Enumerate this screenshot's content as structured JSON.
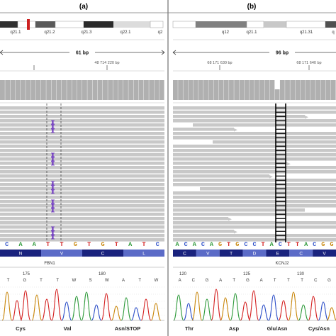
{
  "colors": {
    "A": "#2e9a3a",
    "C": "#2d4fc8",
    "G": "#c8860a",
    "T": "#d42020",
    "read": "#c8c8c8",
    "coverage": "#b0b0b0",
    "insertion": "#6a2fc0",
    "aa_dark": "#1a237e",
    "aa_light": "#5b6bc7",
    "ideogram_centromere": "#cc2020"
  },
  "panels": [
    {
      "label": "(a)",
      "ideogram_bands": [
        "q21.1",
        "q21.2",
        "q21.3",
        "q22.1",
        "q2"
      ],
      "span_label": "61 bp",
      "position_label": "48 714 220 bp",
      "sequence": [
        "C",
        "A",
        "A",
        "T",
        "T",
        "G",
        "T",
        "G",
        "T",
        "A",
        "T",
        "C"
      ],
      "amino_acids": [
        "N",
        "V",
        "C",
        "L"
      ],
      "gene": "FBN1",
      "trace_numbers": [
        "175",
        "180"
      ],
      "trace_bases": [
        "T",
        "G",
        "T",
        "T",
        "W",
        "S",
        "W",
        "A",
        "T",
        "W"
      ],
      "codons": [
        "Cys",
        "Val",
        "Asn/STOP"
      ]
    },
    {
      "label": "(b)",
      "ideogram_bands": [
        "q12",
        "q21.1",
        "q21.31",
        "q"
      ],
      "span_label": "96 bp",
      "position_label_left": "68 171 630 bp",
      "position_label_right": "68 171 640 bp",
      "sequence": [
        "A",
        "C",
        "A",
        "C",
        "A",
        "G",
        "T",
        "G",
        "C",
        "C",
        "T",
        "A",
        "C",
        "T",
        "T",
        "A",
        "C",
        "G",
        "G"
      ],
      "amino_acids": [
        "C",
        "V",
        "T",
        "D",
        "E",
        "C",
        "V"
      ],
      "gene": "KCNJ2",
      "trace_numbers": [
        "120",
        "125",
        "130"
      ],
      "trace_bases": [
        "A",
        "C",
        "G",
        "A",
        "T",
        "G",
        "A",
        "T",
        "T",
        "T",
        "C",
        "G"
      ],
      "codons": [
        "Thr",
        "Asp",
        "Glu/Asn",
        "Cys/Asn"
      ]
    }
  ]
}
